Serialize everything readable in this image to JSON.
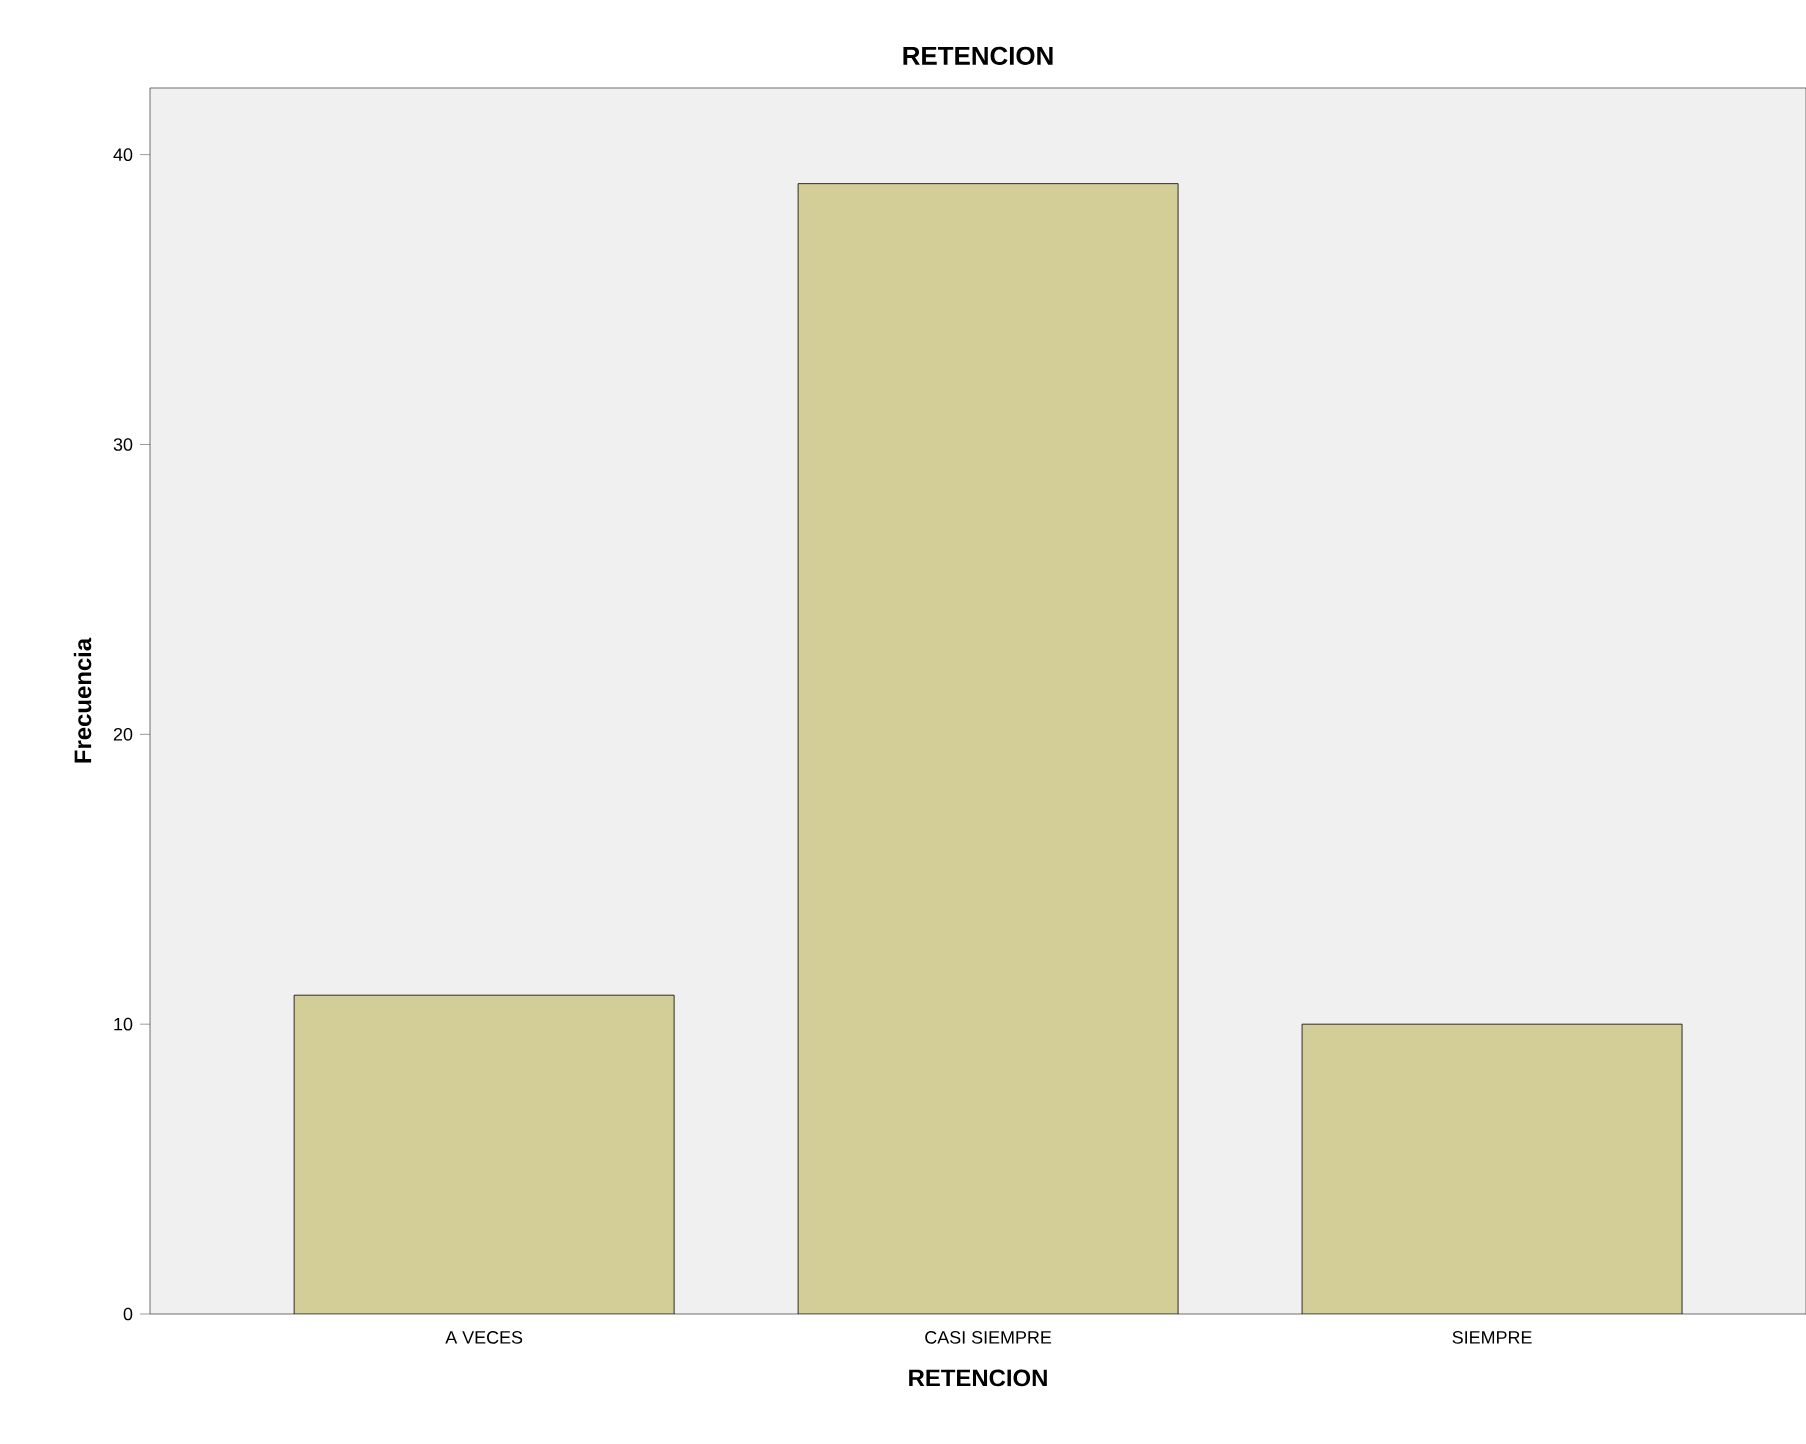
{
  "chart_data": {
    "type": "bar",
    "title": "RETENCION",
    "xlabel": "RETENCION",
    "ylabel": "Frecuencia",
    "categories": [
      "A VECES",
      "CASI SIEMPRE",
      "SIEMPRE"
    ],
    "values": [
      11,
      39,
      10
    ],
    "color": "#d3ce98",
    "ylim": [
      0,
      42.3
    ],
    "yticks": [
      0,
      10,
      20,
      30,
      40
    ]
  }
}
